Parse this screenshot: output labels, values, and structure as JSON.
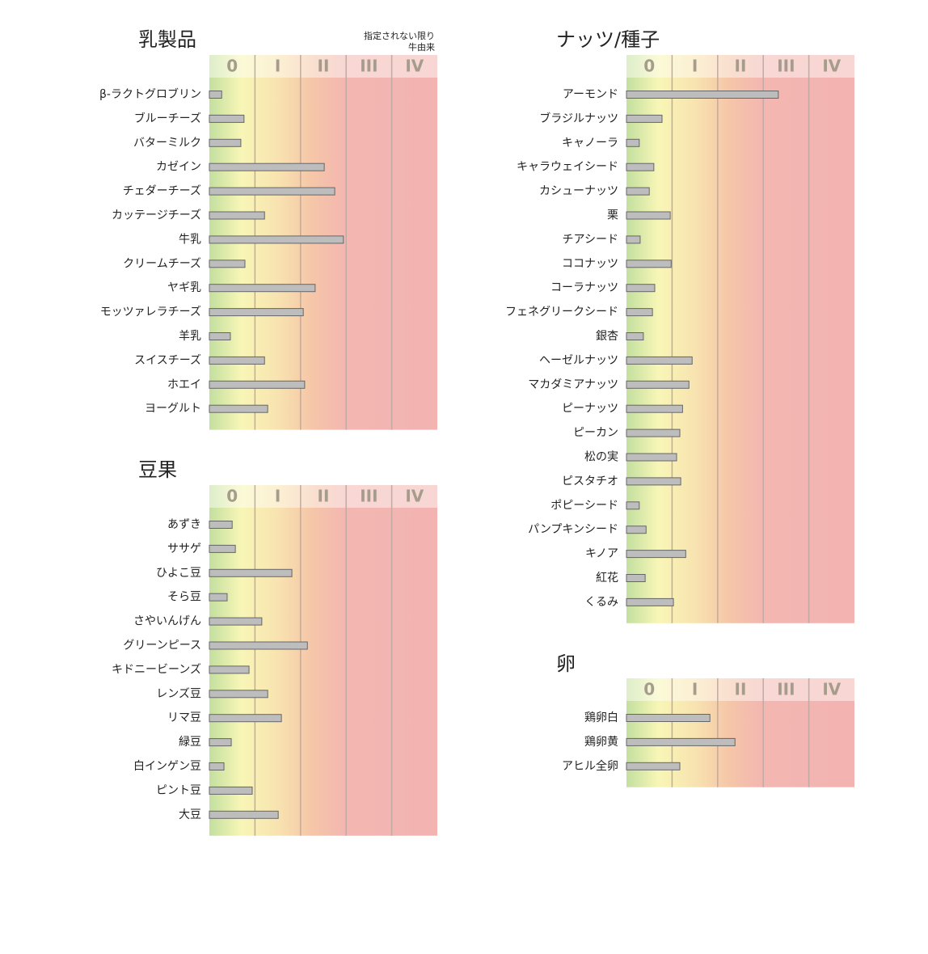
{
  "chart_data": [
    {
      "type": "bar",
      "orientation": "horizontal",
      "title": "乳製品",
      "annotation": [
        "指定されない限り",
        "牛由来"
      ],
      "categories": [
        "β-ラクトグロブリン",
        "ブルーチーズ",
        "バターミルク",
        "カゼイン",
        "チェダーチーズ",
        "カッテージチーズ",
        "牛乳",
        "クリームチーズ",
        "ヤギ乳",
        "モッツァレラチーズ",
        "羊乳",
        "スイスチーズ",
        "ホエイ",
        "ヨーグルト"
      ],
      "values": [
        0.27,
        0.76,
        0.69,
        2.52,
        2.75,
        1.21,
        2.94,
        0.78,
        2.32,
        2.06,
        0.46,
        1.21,
        2.09,
        1.28
      ],
      "xlim": [
        0,
        5
      ],
      "xticks": [
        0,
        1,
        2,
        3,
        4,
        5
      ],
      "class_labels": [
        "0",
        "I",
        "II",
        "III",
        "IV"
      ],
      "color": "#bdbdbd"
    },
    {
      "type": "bar",
      "orientation": "horizontal",
      "title": "豆果",
      "categories": [
        "あずき",
        "ササゲ",
        "ひよこ豆",
        "そら豆",
        "さやいんげん",
        "グリーンピース",
        "キドニービーンズ",
        "レンズ豆",
        "リマ豆",
        "緑豆",
        "白インゲン豆",
        "ピント豆",
        "大豆"
      ],
      "values": [
        0.5,
        0.57,
        1.81,
        0.39,
        1.15,
        2.15,
        0.87,
        1.28,
        1.58,
        0.48,
        0.32,
        0.94,
        1.51
      ],
      "xlim": [
        0,
        5
      ],
      "xticks": [
        0,
        1,
        2,
        3,
        4,
        5
      ],
      "class_labels": [
        "0",
        "I",
        "II",
        "III",
        "IV"
      ],
      "color": "#bdbdbd"
    },
    {
      "type": "bar",
      "orientation": "horizontal",
      "title": "ナッツ/種子",
      "categories": [
        "アーモンド",
        "ブラジルナッツ",
        "キャノーラ",
        "キャラウェイシード",
        "カシューナッツ",
        "栗",
        "チアシード",
        "ココナッツ",
        "コーラナッツ",
        "フェネグリークシード",
        "銀杏",
        "ヘーゼルナッツ",
        "マカダミアナッツ",
        "ピーナッツ",
        "ピーカン",
        "松の実",
        "ピスタチオ",
        "ポピーシード",
        "パンプキンシード",
        "キノア",
        "紅花",
        "くるみ"
      ],
      "values": [
        3.33,
        0.78,
        0.28,
        0.6,
        0.5,
        0.96,
        0.3,
        0.98,
        0.62,
        0.57,
        0.37,
        1.44,
        1.37,
        1.23,
        1.17,
        1.1,
        1.19,
        0.28,
        0.43,
        1.3,
        0.41,
        1.03
      ],
      "xlim": [
        0,
        5
      ],
      "xticks": [
        0,
        1,
        2,
        3,
        4,
        5
      ],
      "class_labels": [
        "0",
        "I",
        "II",
        "III",
        "IV"
      ],
      "color": "#bdbdbd"
    },
    {
      "type": "bar",
      "orientation": "horizontal",
      "title": "卵",
      "categories": [
        "鶏卵白",
        "鶏卵黄",
        "アヒル全卵"
      ],
      "values": [
        1.83,
        2.38,
        1.17
      ],
      "xlim": [
        0,
        5
      ],
      "xticks": [
        0,
        1,
        2,
        3,
        4,
        5
      ],
      "class_labels": [
        "0",
        "I",
        "II",
        "III",
        "IV"
      ],
      "color": "#bdbdbd"
    }
  ]
}
